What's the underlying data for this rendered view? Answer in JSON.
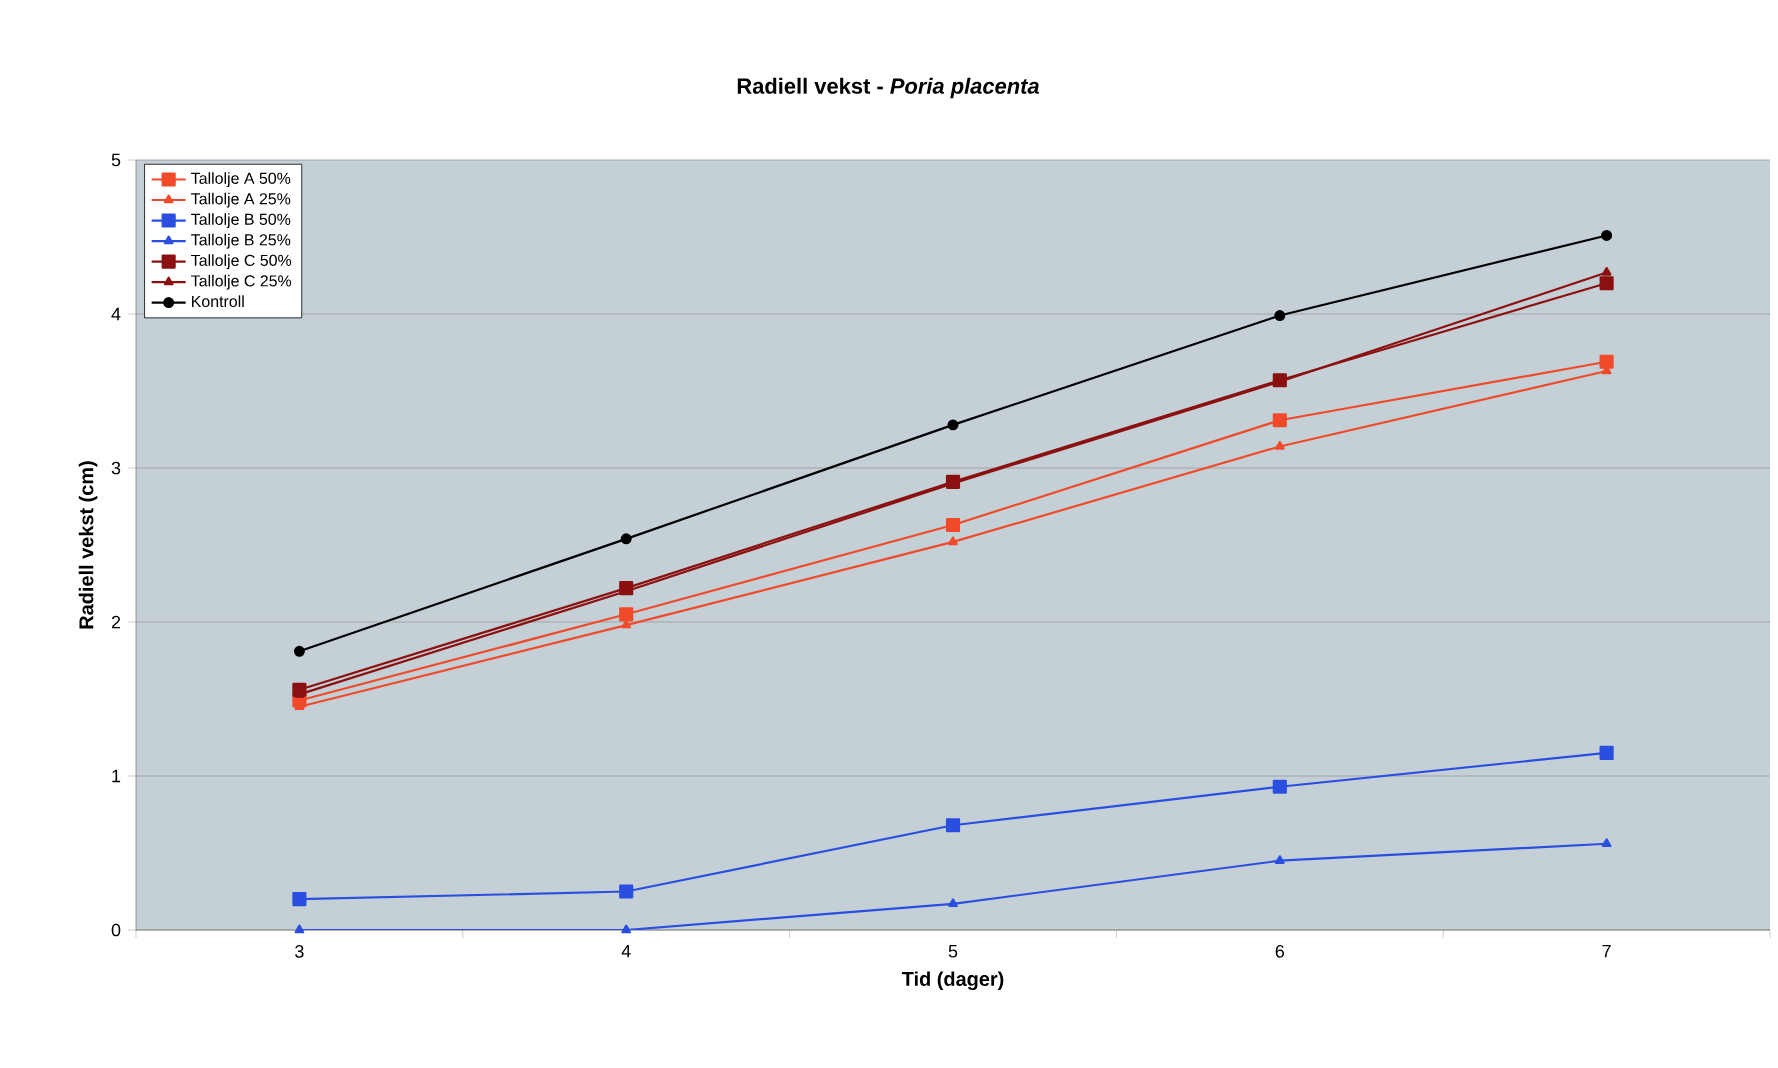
{
  "chart_data": {
    "type": "line",
    "title": "Radiell vekst - *Poria placenta*",
    "xlabel": "Tid (dager)",
    "ylabel": "Radiell vekst (cm)",
    "categories": [
      "3",
      "4",
      "5",
      "6",
      "7"
    ],
    "series": [
      {
        "name": "Tallolje A 50%",
        "color": "#f04a2a",
        "marker": "square",
        "values": [
          1.49,
          2.05,
          2.63,
          3.31,
          3.69
        ]
      },
      {
        "name": "Tallolje A 25%",
        "color": "#f04a2a",
        "marker": "triangle",
        "values": [
          1.45,
          1.98,
          2.52,
          3.14,
          3.63
        ]
      },
      {
        "name": "Tallolje B 50%",
        "color": "#2a4fe0",
        "marker": "square",
        "values": [
          0.2,
          0.25,
          0.68,
          0.93,
          1.15
        ]
      },
      {
        "name": "Tallolje B 25%",
        "color": "#2a4fe0",
        "marker": "triangle",
        "values": [
          0.0,
          0.0,
          0.17,
          0.45,
          0.56
        ]
      },
      {
        "name": "Tallolje C 50%",
        "color": "#8b1010",
        "marker": "square",
        "values": [
          1.56,
          2.22,
          2.91,
          3.57,
          4.2
        ]
      },
      {
        "name": "Tallolje C 25%",
        "color": "#8b1010",
        "marker": "triangle",
        "values": [
          1.53,
          2.2,
          2.9,
          3.56,
          4.27
        ]
      },
      {
        "name": "Kontroll",
        "color": "#000000",
        "marker": "circle",
        "values": [
          1.81,
          2.54,
          3.28,
          3.99,
          4.51
        ]
      }
    ],
    "ylim": [
      0,
      5
    ],
    "yticks": [
      0,
      1,
      2,
      3,
      4,
      5
    ],
    "grid": "y",
    "legend": "top left"
  }
}
